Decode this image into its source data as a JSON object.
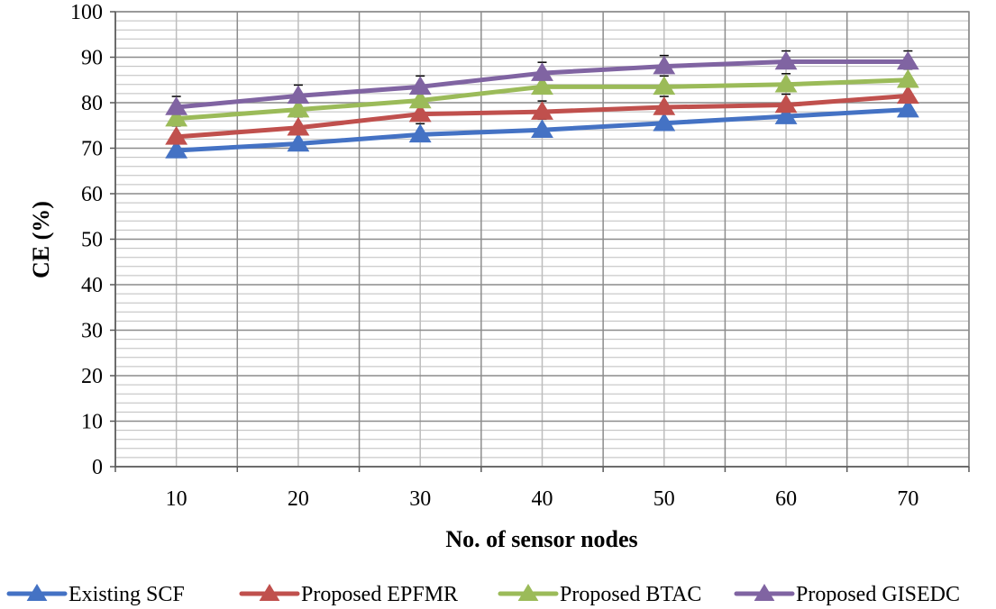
{
  "chart_data": {
    "type": "line",
    "title": "",
    "xlabel": "No. of sensor nodes",
    "ylabel": "CE (%)",
    "x": [
      10,
      20,
      30,
      40,
      50,
      60,
      70
    ],
    "x_tick_labels": [
      "10",
      "20",
      "30",
      "40",
      "50",
      "60",
      "70"
    ],
    "ylim": [
      0,
      100
    ],
    "y_ticks": [
      0,
      10,
      20,
      30,
      40,
      50,
      60,
      70,
      80,
      90,
      100
    ],
    "y_tick_labels": [
      "0",
      "10",
      "20",
      "30",
      "40",
      "50",
      "60",
      "70",
      "80",
      "90",
      "100"
    ],
    "grid": true,
    "legend_position": "bottom",
    "series": [
      {
        "name": "Existing SCF",
        "color": "#4472C4",
        "marker": "triangle",
        "values": [
          69.5,
          71,
          73,
          74,
          75.5,
          77,
          78.5
        ]
      },
      {
        "name": "Proposed EPFMR",
        "color": "#C0504D",
        "marker": "triangle",
        "values": [
          72.5,
          74.5,
          77.5,
          78,
          79,
          79.5,
          81.5
        ]
      },
      {
        "name": "Proposed BTAC",
        "color": "#9BBB59",
        "marker": "triangle",
        "values": [
          76.5,
          78.5,
          80.5,
          83.5,
          83.5,
          84,
          85
        ]
      },
      {
        "name": "Proposed GISEDC",
        "color": "#8064A2",
        "marker": "triangle",
        "values": [
          79,
          81.5,
          83.5,
          86.5,
          88,
          89,
          89
        ]
      }
    ]
  }
}
